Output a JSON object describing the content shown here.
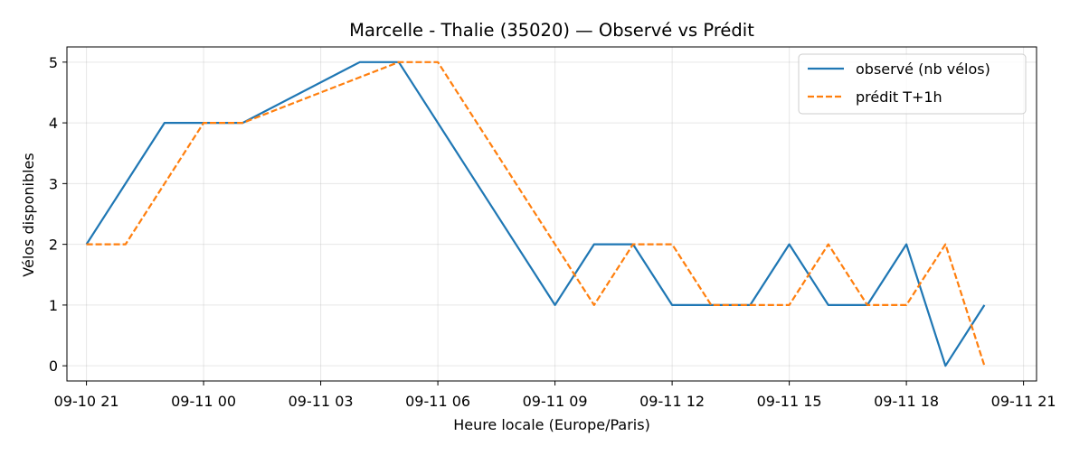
{
  "chart_data": {
    "type": "line",
    "title": "Marcelle - Thalie (35020) — Observé vs Prédit",
    "xlabel": "Heure locale (Europe/Paris)",
    "ylabel": "Vélos disponibles",
    "x_tick_labels": [
      "09-10 21",
      "09-11 00",
      "09-11 03",
      "09-11 06",
      "09-11 09",
      "09-11 12",
      "09-11 15",
      "09-11 18",
      "09-11 21"
    ],
    "y_tick_labels": [
      "0",
      "1",
      "2",
      "3",
      "4",
      "5"
    ],
    "xlim": [
      "2023-09-10 20:30",
      "2023-09-11 21:20"
    ],
    "ylim": [
      -0.25,
      5.25
    ],
    "x_ticks": [
      "2023-09-10 21:00",
      "2023-09-11 00:00",
      "2023-09-11 03:00",
      "2023-09-11 06:00",
      "2023-09-11 09:00",
      "2023-09-11 12:00",
      "2023-09-11 15:00",
      "2023-09-11 18:00",
      "2023-09-11 21:00"
    ],
    "y_ticks": [
      0,
      1,
      2,
      3,
      4,
      5
    ],
    "grid": true,
    "legend_position": "upper right",
    "x": [
      "2023-09-10 21:00",
      "2023-09-10 22:00",
      "2023-09-10 23:00",
      "2023-09-11 00:00",
      "2023-09-11 01:00",
      "2023-09-11 04:00",
      "2023-09-11 05:00",
      "2023-09-11 06:00",
      "2023-09-11 09:00",
      "2023-09-11 10:00",
      "2023-09-11 11:00",
      "2023-09-11 12:00",
      "2023-09-11 13:00",
      "2023-09-11 14:00",
      "2023-09-11 15:00",
      "2023-09-11 16:00",
      "2023-09-11 17:00",
      "2023-09-11 18:00",
      "2023-09-11 19:00",
      "2023-09-11 20:00"
    ],
    "series": [
      {
        "name": "observé (nb vélos)",
        "color": "#1f77b4",
        "style": "solid",
        "values": [
          2,
          null,
          4,
          4,
          4,
          5,
          5,
          null,
          1,
          2,
          2,
          1,
          1,
          1,
          2,
          1,
          1,
          2,
          0,
          1
        ]
      },
      {
        "name": "prédit T+1h",
        "color": "#ff7f0e",
        "style": "dashed",
        "values": [
          2,
          2,
          null,
          4,
          4,
          null,
          5,
          5,
          2,
          1,
          2,
          2,
          1,
          1,
          1,
          2,
          1,
          1,
          2,
          0
        ]
      }
    ]
  }
}
